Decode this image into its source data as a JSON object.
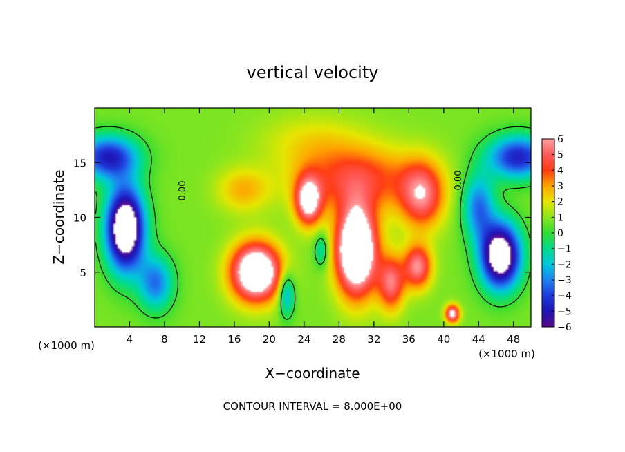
{
  "chart_data": {
    "type": "heatmap",
    "title": "vertical velocity",
    "xlabel": "X−coordinate",
    "ylabel": "Z−coordinate",
    "x_unit_label_left": "(×1000 m)",
    "x_unit_label_right": "(×1000 m)",
    "footer": "CONTOUR INTERVAL = 8.000E+00",
    "xlim": [
      0,
      50
    ],
    "ylim": [
      0,
      20
    ],
    "x_ticks": [
      4,
      8,
      12,
      16,
      20,
      24,
      28,
      32,
      36,
      40,
      44,
      48
    ],
    "x_tick_labels": [
      "4",
      "8",
      "12",
      "16",
      "20",
      "24",
      "28",
      "32",
      "36",
      "40",
      "44",
      "48"
    ],
    "y_ticks": [
      5,
      10,
      15
    ],
    "y_tick_labels": [
      "5",
      "10",
      "15"
    ],
    "contour_labels": [
      "0.00",
      "0.00"
    ],
    "colorbar": {
      "min": -6,
      "max": 6,
      "tick_labels": [
        "6",
        "5",
        "4",
        "3",
        "2",
        "1",
        "0",
        "−1",
        "−2",
        "−3",
        "−4",
        "−5",
        "−6"
      ],
      "colors": [
        "#5a0a8c",
        "#1e14b4",
        "#1e3cdc",
        "#1e82f0",
        "#00c8dc",
        "#00dc8c",
        "#32dc32",
        "#8ce61e",
        "#e6e600",
        "#ffa500",
        "#ff3c14",
        "#ff5a5a",
        "#ffa0a0"
      ]
    },
    "features": [
      {
        "x": 3.5,
        "y": 9.0,
        "value": -9.5,
        "sx": 2.2,
        "sy": 3.8
      },
      {
        "x": 46.5,
        "y": 6.5,
        "value": -9.0,
        "sx": 2.3,
        "sy": 3.0
      },
      {
        "x": 1.5,
        "y": 15.5,
        "value": -5.5,
        "sx": 3.5,
        "sy": 2.0
      },
      {
        "x": 48.5,
        "y": 15.5,
        "value": -5.5,
        "sx": 3.5,
        "sy": 2.0
      },
      {
        "x": 7.0,
        "y": 4.0,
        "value": -4.0,
        "sx": 2.0,
        "sy": 2.5
      },
      {
        "x": 44.0,
        "y": 11.0,
        "value": -4.0,
        "sx": 1.8,
        "sy": 3.0
      },
      {
        "x": 30.0,
        "y": 7.0,
        "value": 9.5,
        "sx": 2.3,
        "sy": 4.0
      },
      {
        "x": 18.5,
        "y": 5.0,
        "value": 8.5,
        "sx": 2.8,
        "sy": 2.6
      },
      {
        "x": 24.5,
        "y": 11.5,
        "value": 6.0,
        "sx": 1.5,
        "sy": 2.2
      },
      {
        "x": 37.5,
        "y": 12.0,
        "value": 4.5,
        "sx": 2.5,
        "sy": 3.0
      },
      {
        "x": 30.0,
        "y": 13.5,
        "value": 3.5,
        "sx": 7.0,
        "sy": 3.0
      },
      {
        "x": 17.0,
        "y": 12.5,
        "value": 2.0,
        "sx": 3.0,
        "sy": 2.0
      },
      {
        "x": 37.0,
        "y": 5.5,
        "value": 5.0,
        "sx": 1.6,
        "sy": 2.0
      },
      {
        "x": 34.0,
        "y": 4.0,
        "value": 4.5,
        "sx": 1.5,
        "sy": 2.5
      },
      {
        "x": 41.0,
        "y": 1.2,
        "value": 6.0,
        "sx": 0.8,
        "sy": 0.8
      },
      {
        "x": 22.0,
        "y": 3.0,
        "value": -3.5,
        "sx": 0.9,
        "sy": 2.0
      },
      {
        "x": 26.0,
        "y": 7.0,
        "value": -2.5,
        "sx": 0.8,
        "sy": 1.5
      },
      {
        "x": 25.0,
        "y": 17.0,
        "value": 1.2,
        "sx": 6.0,
        "sy": 2.5
      }
    ]
  }
}
